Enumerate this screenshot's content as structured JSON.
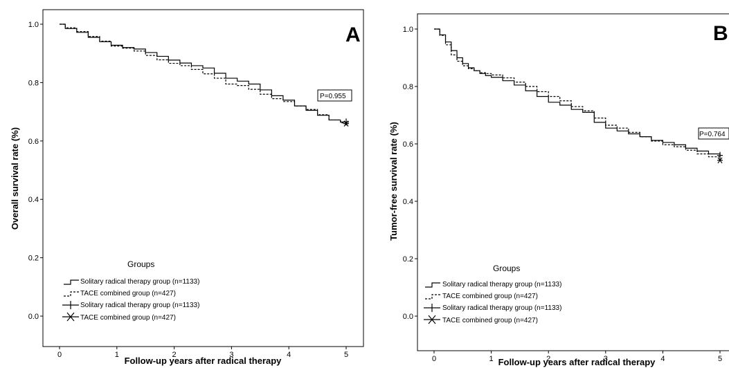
{
  "chart_data": [
    {
      "type": "line",
      "panel_label": "A",
      "ylabel": "Overall survival rate (%)",
      "xlabel": "Follow-up years after radical therapy",
      "xlim": [
        0,
        5
      ],
      "ylim": [
        0,
        1.0
      ],
      "x_ticks": [
        "0",
        "1",
        "2",
        "3",
        "4",
        "5"
      ],
      "y_ticks": [
        "0.0",
        "0.2",
        "0.4",
        "0.6",
        "0.8",
        "1.0"
      ],
      "annotation": "P=0.955",
      "legend": {
        "title": "Groups",
        "entries": [
          "Solitary radical therapy group (n=1133)",
          "TACE combined group (n=427)",
          "Solitary radical therapy group (n=1133)",
          "TACE combined group (n=427)"
        ]
      },
      "series": [
        {
          "style": "solid",
          "x": [
            0,
            0.1,
            0.3,
            0.5,
            0.7,
            0.9,
            1.1,
            1.3,
            1.5,
            1.7,
            1.9,
            2.1,
            2.3,
            2.5,
            2.7,
            2.9,
            3.1,
            3.3,
            3.5,
            3.7,
            3.9,
            4.1,
            4.3,
            4.5,
            4.7,
            4.9,
            5.0
          ],
          "y": [
            1.0,
            0.985,
            0.972,
            0.955,
            0.94,
            0.928,
            0.92,
            0.915,
            0.903,
            0.89,
            0.877,
            0.867,
            0.858,
            0.85,
            0.832,
            0.815,
            0.805,
            0.795,
            0.775,
            0.755,
            0.74,
            0.72,
            0.705,
            0.688,
            0.672,
            0.665,
            0.665
          ]
        },
        {
          "style": "dashed",
          "x": [
            0,
            0.1,
            0.3,
            0.5,
            0.7,
            0.9,
            1.1,
            1.3,
            1.5,
            1.7,
            1.9,
            2.1,
            2.3,
            2.5,
            2.7,
            2.9,
            3.1,
            3.3,
            3.5,
            3.7,
            3.9,
            4.1,
            4.3,
            4.5,
            4.7,
            4.9,
            5.0
          ],
          "y": [
            1.0,
            0.988,
            0.975,
            0.958,
            0.942,
            0.925,
            0.918,
            0.908,
            0.893,
            0.878,
            0.866,
            0.858,
            0.845,
            0.83,
            0.815,
            0.795,
            0.79,
            0.777,
            0.76,
            0.745,
            0.735,
            0.72,
            0.708,
            0.69,
            0.672,
            0.662,
            0.662
          ]
        }
      ]
    },
    {
      "type": "line",
      "panel_label": "B",
      "ylabel": "Tumor-free survival rate (%)",
      "xlabel": "Follow-up years after radical therapy",
      "xlim": [
        0,
        5
      ],
      "ylim": [
        0,
        1.0
      ],
      "x_ticks": [
        "0",
        "1",
        "2",
        "3",
        "4",
        "5"
      ],
      "y_ticks": [
        "0.0",
        "0.2",
        "0.4",
        "0.6",
        "0.8",
        "1.0"
      ],
      "annotation": "P=0.764",
      "legend": {
        "title": "Groups",
        "entries": [
          "Solitary radical therapy group (n=1133)",
          "TACE combined group (n=427)",
          "Solitary radical therapy group (n=1133)",
          "TACE combined group (n=427)"
        ]
      },
      "series": [
        {
          "style": "solid",
          "x": [
            0,
            0.1,
            0.2,
            0.3,
            0.4,
            0.5,
            0.6,
            0.7,
            0.8,
            0.9,
            1.0,
            1.2,
            1.4,
            1.6,
            1.8,
            2.0,
            2.2,
            2.4,
            2.6,
            2.8,
            3.0,
            3.2,
            3.4,
            3.6,
            3.8,
            4.0,
            4.2,
            4.4,
            4.6,
            4.8,
            5.0
          ],
          "y": [
            1.0,
            0.98,
            0.955,
            0.925,
            0.9,
            0.88,
            0.865,
            0.855,
            0.845,
            0.838,
            0.832,
            0.82,
            0.805,
            0.785,
            0.765,
            0.745,
            0.735,
            0.72,
            0.71,
            0.675,
            0.655,
            0.645,
            0.635,
            0.625,
            0.612,
            0.605,
            0.597,
            0.585,
            0.575,
            0.565,
            0.56
          ]
        },
        {
          "style": "dashed",
          "x": [
            0,
            0.1,
            0.2,
            0.3,
            0.4,
            0.5,
            0.6,
            0.7,
            0.8,
            0.9,
            1.0,
            1.2,
            1.4,
            1.6,
            1.8,
            2.0,
            2.2,
            2.4,
            2.6,
            2.8,
            3.0,
            3.2,
            3.4,
            3.6,
            3.8,
            4.0,
            4.2,
            4.4,
            4.6,
            4.8,
            5.0
          ],
          "y": [
            1.0,
            0.978,
            0.945,
            0.91,
            0.888,
            0.872,
            0.862,
            0.855,
            0.848,
            0.845,
            0.84,
            0.83,
            0.815,
            0.8,
            0.782,
            0.765,
            0.75,
            0.73,
            0.715,
            0.69,
            0.665,
            0.655,
            0.64,
            0.625,
            0.61,
            0.597,
            0.59,
            0.578,
            0.565,
            0.555,
            0.545
          ]
        }
      ]
    }
  ]
}
